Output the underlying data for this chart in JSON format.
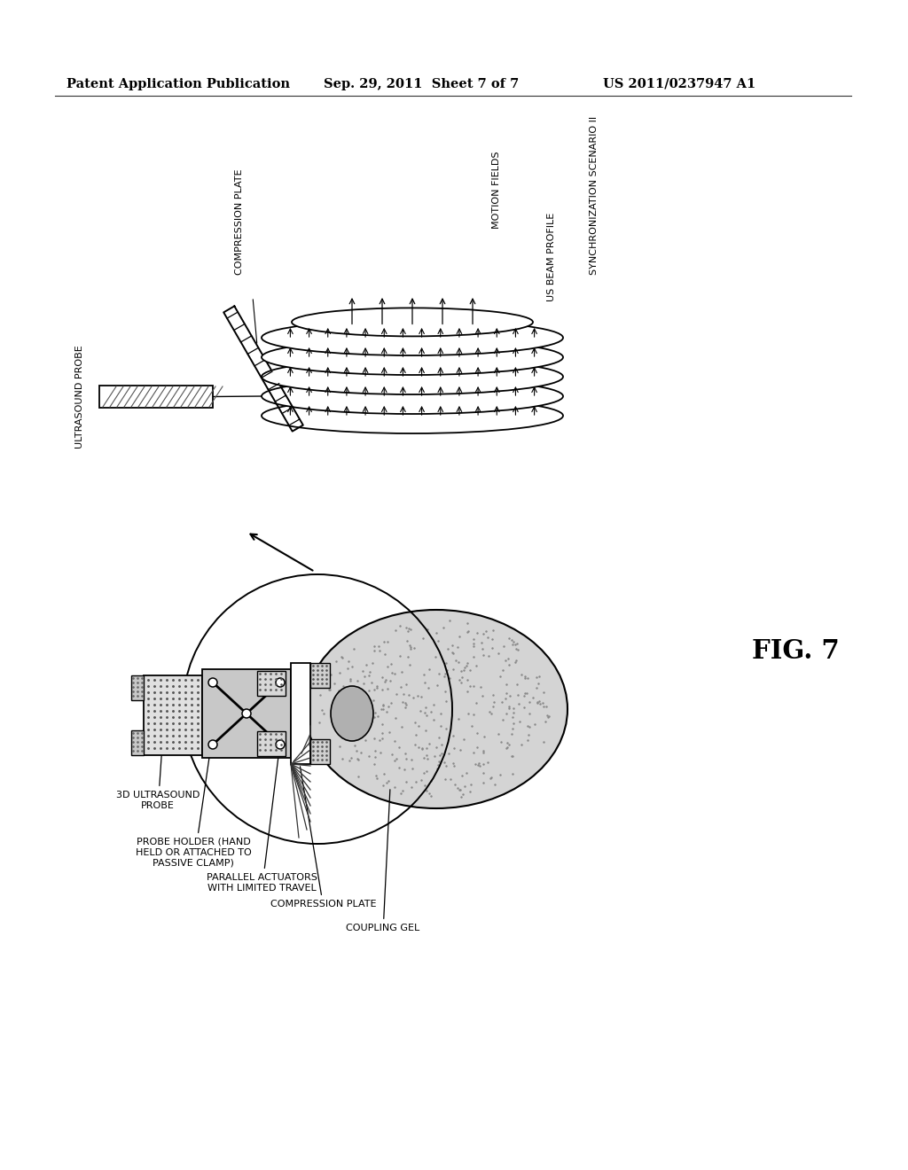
{
  "background_color": "#ffffff",
  "header_left": "Patent Application Publication",
  "header_center": "Sep. 29, 2011  Sheet 7 of 7",
  "header_right": "US 2011/0237947 A1",
  "fig_label": "FIG. 7",
  "top_labels": {
    "ultrasound_probe": "ULTRASOUND PROBE",
    "compression_plate": "COMPRESSION PLATE",
    "motion_fields": "MOTION FIELDS",
    "us_beam_profile": "US BEAM PROFILE",
    "sync_scenario": "SYNCHRONIZATION SCENARIO II"
  },
  "bottom_labels": {
    "probe_3d": "3D ULTRASOUND\nPROBE",
    "probe_holder": "PROBE HOLDER (HAND\nHELD OR ATTACHED TO\nPASSIVE CLAMP)",
    "parallel_actuators": "PARALLEL ACTUATORS\nWITH LIMITED TRAVEL",
    "compression_plate": "COMPRESSION PLATE",
    "coupling_gel": "COUPLING GEL"
  }
}
